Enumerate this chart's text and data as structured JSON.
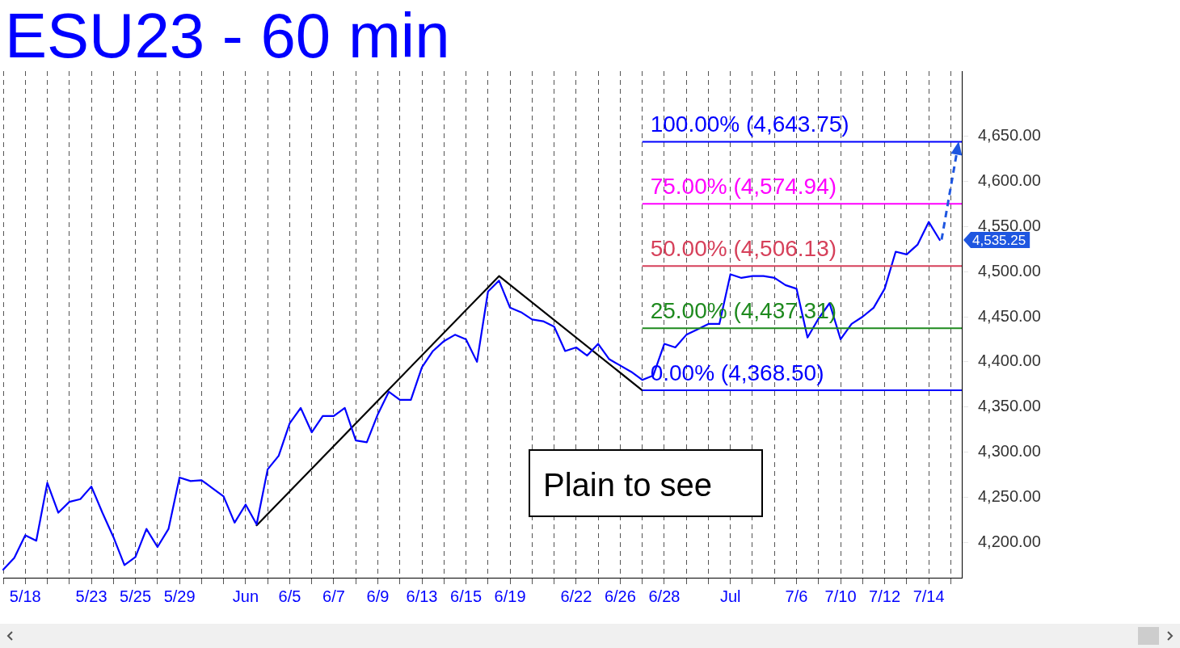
{
  "chart_data": {
    "type": "line",
    "title": "ESU23 - 60 min",
    "categories": [
      null,
      null,
      "5/18",
      null,
      null,
      null,
      null,
      null,
      "5/23",
      null,
      null,
      null,
      "5/25",
      null,
      null,
      null,
      "5/29",
      null,
      null,
      null,
      null,
      null,
      "Jun",
      null,
      null,
      null,
      "6/5",
      null,
      null,
      null,
      "6/7",
      null,
      null,
      null,
      "6/9",
      null,
      null,
      null,
      "6/13",
      null,
      null,
      null,
      "6/15",
      null,
      null,
      null,
      "6/19",
      null,
      null,
      null,
      null,
      null,
      "6/22",
      null,
      null,
      null,
      "6/26",
      null,
      null,
      null,
      "6/28",
      null,
      null,
      null,
      null,
      null,
      "Jul",
      null,
      null,
      null,
      null,
      null,
      "7/6",
      null,
      null,
      null,
      "7/10",
      null,
      null,
      null,
      "7/12",
      null,
      null,
      null,
      "7/14",
      null,
      null,
      null
    ],
    "ylim": [
      4161,
      4722
    ],
    "yticks": [
      {
        "value": 4200,
        "label": "4,200.00"
      },
      {
        "value": 4250,
        "label": "4,250.00"
      },
      {
        "value": 4300,
        "label": "4,300.00"
      },
      {
        "value": 4350,
        "label": "4,350.00"
      },
      {
        "value": 4400,
        "label": "4,400.00"
      },
      {
        "value": 4450,
        "label": "4,450.00"
      },
      {
        "value": 4500,
        "label": "4,500.00"
      },
      {
        "value": 4550,
        "label": "4,550.00"
      },
      {
        "value": 4600,
        "label": "4,600.00"
      },
      {
        "value": 4650,
        "label": "4,650.00"
      }
    ],
    "grid": "x",
    "legend": false,
    "marker": "none",
    "series": [
      {
        "color": "#0000ff",
        "line_style": "solid",
        "values": [
          4170,
          4183,
          4208,
          4202,
          4266,
          4233,
          4245,
          4248,
          4262,
          4233,
          4206,
          4175,
          4184,
          4215,
          4195,
          4215,
          4272,
          4268,
          4269,
          4260,
          4251,
          4222,
          4242,
          4220,
          4281,
          4296,
          4332,
          4349,
          4322,
          4340,
          4340,
          4349,
          4313,
          4311,
          4342,
          4367,
          4358,
          4358,
          4394,
          4412,
          4423,
          4430,
          4425,
          4400,
          4478,
          4490,
          4460,
          4455,
          4447,
          4445,
          4439,
          4412,
          4416,
          4407,
          4420,
          4403,
          4396,
          4389,
          4380,
          4385,
          4420,
          4416,
          4430,
          4436,
          4442,
          4442,
          4497,
          4493,
          4495,
          4495,
          4493,
          4485,
          4481,
          4427,
          4448,
          4465,
          4425,
          4442,
          4450,
          4460,
          4481,
          4522,
          4519,
          4530,
          4555,
          4535,
          null,
          null
        ]
      },
      {
        "color": "#000000",
        "line_style": "solid",
        "values": [
          null,
          null,
          null,
          null,
          null,
          null,
          null,
          null,
          null,
          null,
          null,
          null,
          null,
          null,
          null,
          null,
          null,
          null,
          null,
          null,
          null,
          null,
          null,
          4219,
          null,
          null,
          null,
          null,
          null,
          null,
          null,
          null,
          null,
          null,
          null,
          null,
          null,
          null,
          null,
          null,
          null,
          null,
          null,
          null,
          null,
          4495,
          null,
          null,
          null,
          null,
          null,
          null,
          null,
          null,
          null,
          null,
          null,
          null,
          4368.5,
          null,
          null,
          null,
          null,
          null,
          null,
          null,
          null,
          null,
          null,
          null,
          null,
          null,
          null,
          null,
          null,
          null,
          null,
          null,
          null,
          null,
          null,
          null,
          null,
          null,
          null,
          null,
          null,
          null
        ]
      }
    ],
    "ref_lines": [
      {
        "axis": "y",
        "value": 4643.75,
        "label": "100.00% (4,643.75)",
        "color": "#0000ff"
      },
      {
        "axis": "y",
        "value": 4574.94,
        "label": "75.00% (4,574.94)",
        "color": "#ff00ff"
      },
      {
        "axis": "y",
        "value": 4506.13,
        "label": "50.00% (4,506.13)",
        "color": "#d6405a"
      },
      {
        "axis": "y",
        "value": 4437.31,
        "label": "25.00% (4,437.31)",
        "color": "#1e8a1e"
      },
      {
        "axis": "y",
        "value": 4368.5,
        "label": "0.00% (4,368.50)",
        "color": "#0000ff"
      }
    ],
    "annotations": [
      "Plain to see",
      "4,535.25"
    ]
  }
}
